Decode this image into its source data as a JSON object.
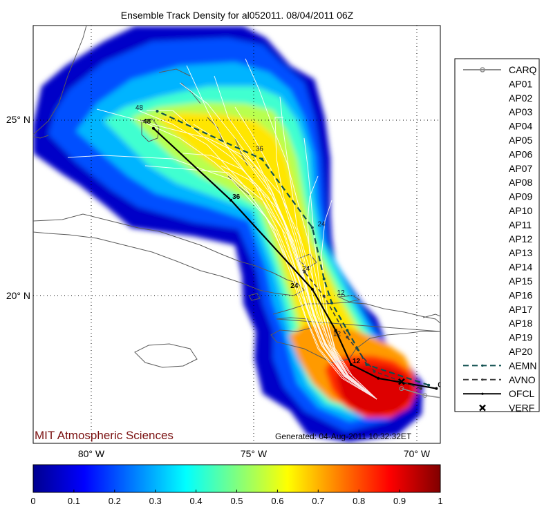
{
  "chart_data": {
    "type": "heatmap",
    "title": "Ensemble Track Density for al052011. 08/04/2011 06Z",
    "x_ticks": [
      "80° W",
      "75° W",
      "70° W"
    ],
    "y_ticks": [
      "25° N",
      "20° N"
    ],
    "xlim_deg_w": [
      81.0,
      70.5
    ],
    "ylim_deg_n": [
      15.5,
      27.7
    ],
    "grid": "dotted",
    "colorbar": {
      "ticks": [
        "0",
        "0.1",
        "0.2",
        "0.3",
        "0.4",
        "0.5",
        "0.6",
        "0.7",
        "0.8",
        "0.9",
        "1"
      ],
      "range": [
        0,
        1
      ],
      "colormap": "jet"
    },
    "legend": {
      "placement": "right",
      "items": [
        {
          "label": "CARQ",
          "style": "gray-line-circle"
        },
        {
          "label": "AP01",
          "style": "white"
        },
        {
          "label": "AP02",
          "style": "white"
        },
        {
          "label": "AP03",
          "style": "white"
        },
        {
          "label": "AP04",
          "style": "white"
        },
        {
          "label": "AP05",
          "style": "white"
        },
        {
          "label": "AP06",
          "style": "white"
        },
        {
          "label": "AP07",
          "style": "white"
        },
        {
          "label": "AP08",
          "style": "white"
        },
        {
          "label": "AP09",
          "style": "white"
        },
        {
          "label": "AP10",
          "style": "white"
        },
        {
          "label": "AP11",
          "style": "white"
        },
        {
          "label": "AP12",
          "style": "white"
        },
        {
          "label": "AP13",
          "style": "white"
        },
        {
          "label": "AP14",
          "style": "white"
        },
        {
          "label": "AP15",
          "style": "white"
        },
        {
          "label": "AP16",
          "style": "white"
        },
        {
          "label": "AP17",
          "style": "white"
        },
        {
          "label": "AP18",
          "style": "white"
        },
        {
          "label": "AP19",
          "style": "white"
        },
        {
          "label": "AP20",
          "style": "white"
        },
        {
          "label": "AEMN",
          "style": "teal-dash"
        },
        {
          "label": "AVNO",
          "style": "gray-dash"
        },
        {
          "label": "OFCL",
          "style": "black-solid"
        },
        {
          "label": "VERF",
          "style": "x-marker"
        }
      ]
    },
    "series": [
      {
        "name": "OFCL",
        "lon_w": [
          70.6,
          72.1,
          72.8,
          73.2,
          73.8,
          75.9,
          77.9
        ],
        "lat_n": [
          17.1,
          17.4,
          17.8,
          18.8,
          20.0,
          22.6,
          24.7
        ],
        "labels": [
          {
            "text": "0",
            "lon_w": 70.6,
            "lat_n": 17.1
          },
          {
            "text": "12",
            "lon_w": 72.8,
            "lat_n": 17.8
          },
          {
            "text": "24",
            "lon_w": 74.4,
            "lat_n": 20.0
          },
          {
            "text": "36",
            "lon_w": 75.9,
            "lat_n": 22.6
          },
          {
            "text": "48",
            "lon_w": 78.2,
            "lat_n": 24.8
          }
        ]
      },
      {
        "name": "AEMN",
        "lon_w": [
          70.8,
          72.4,
          72.9,
          73.3,
          73.5,
          73.8,
          75.1,
          77.8
        ],
        "lat_n": [
          17.2,
          17.8,
          18.8,
          19.6,
          20.3,
          21.8,
          23.8,
          25.2
        ],
        "labels": [
          {
            "text": "12",
            "lon_w": 73.2,
            "lat_n": 19.8
          },
          {
            "text": "24",
            "lon_w": 73.7,
            "lat_n": 21.8
          },
          {
            "text": "36",
            "lon_w": 75.3,
            "lat_n": 24.0
          },
          {
            "text": "48",
            "lon_w": 78.4,
            "lat_n": 25.2
          }
        ]
      },
      {
        "name": "AVNO",
        "lon_w": [
          71.0,
          72.2,
          72.9,
          73.5,
          74.0
        ],
        "lat_n": [
          17.1,
          17.6,
          18.6,
          19.8,
          20.5
        ],
        "labels": [
          {
            "text": "12",
            "lon_w": 73.3,
            "lat_n": 18.6
          },
          {
            "text": "24",
            "lon_w": 74.1,
            "lat_n": 20.5
          }
        ]
      },
      {
        "name": "CARQ",
        "lon_w": [
          70.3,
          70.9,
          71.5
        ],
        "lat_n": [
          16.8,
          16.9,
          17.1
        ]
      },
      {
        "name": "VERF",
        "lon_w": [
          71.5
        ],
        "lat_n": [
          17.3
        ]
      }
    ]
  },
  "footer": {
    "brand": "MIT Atmospheric Sciences",
    "generated": "Generated: 04-Aug-2011 10:32:32ET"
  },
  "colors": {
    "brand_text": "#7a1010",
    "carq": "#8c8c8c",
    "aemn": "#0f4f4f",
    "avno": "#3a3a3a",
    "ofcl": "#000000",
    "ensemble_track": "#ffffff",
    "coast": "#5a5a5a"
  }
}
